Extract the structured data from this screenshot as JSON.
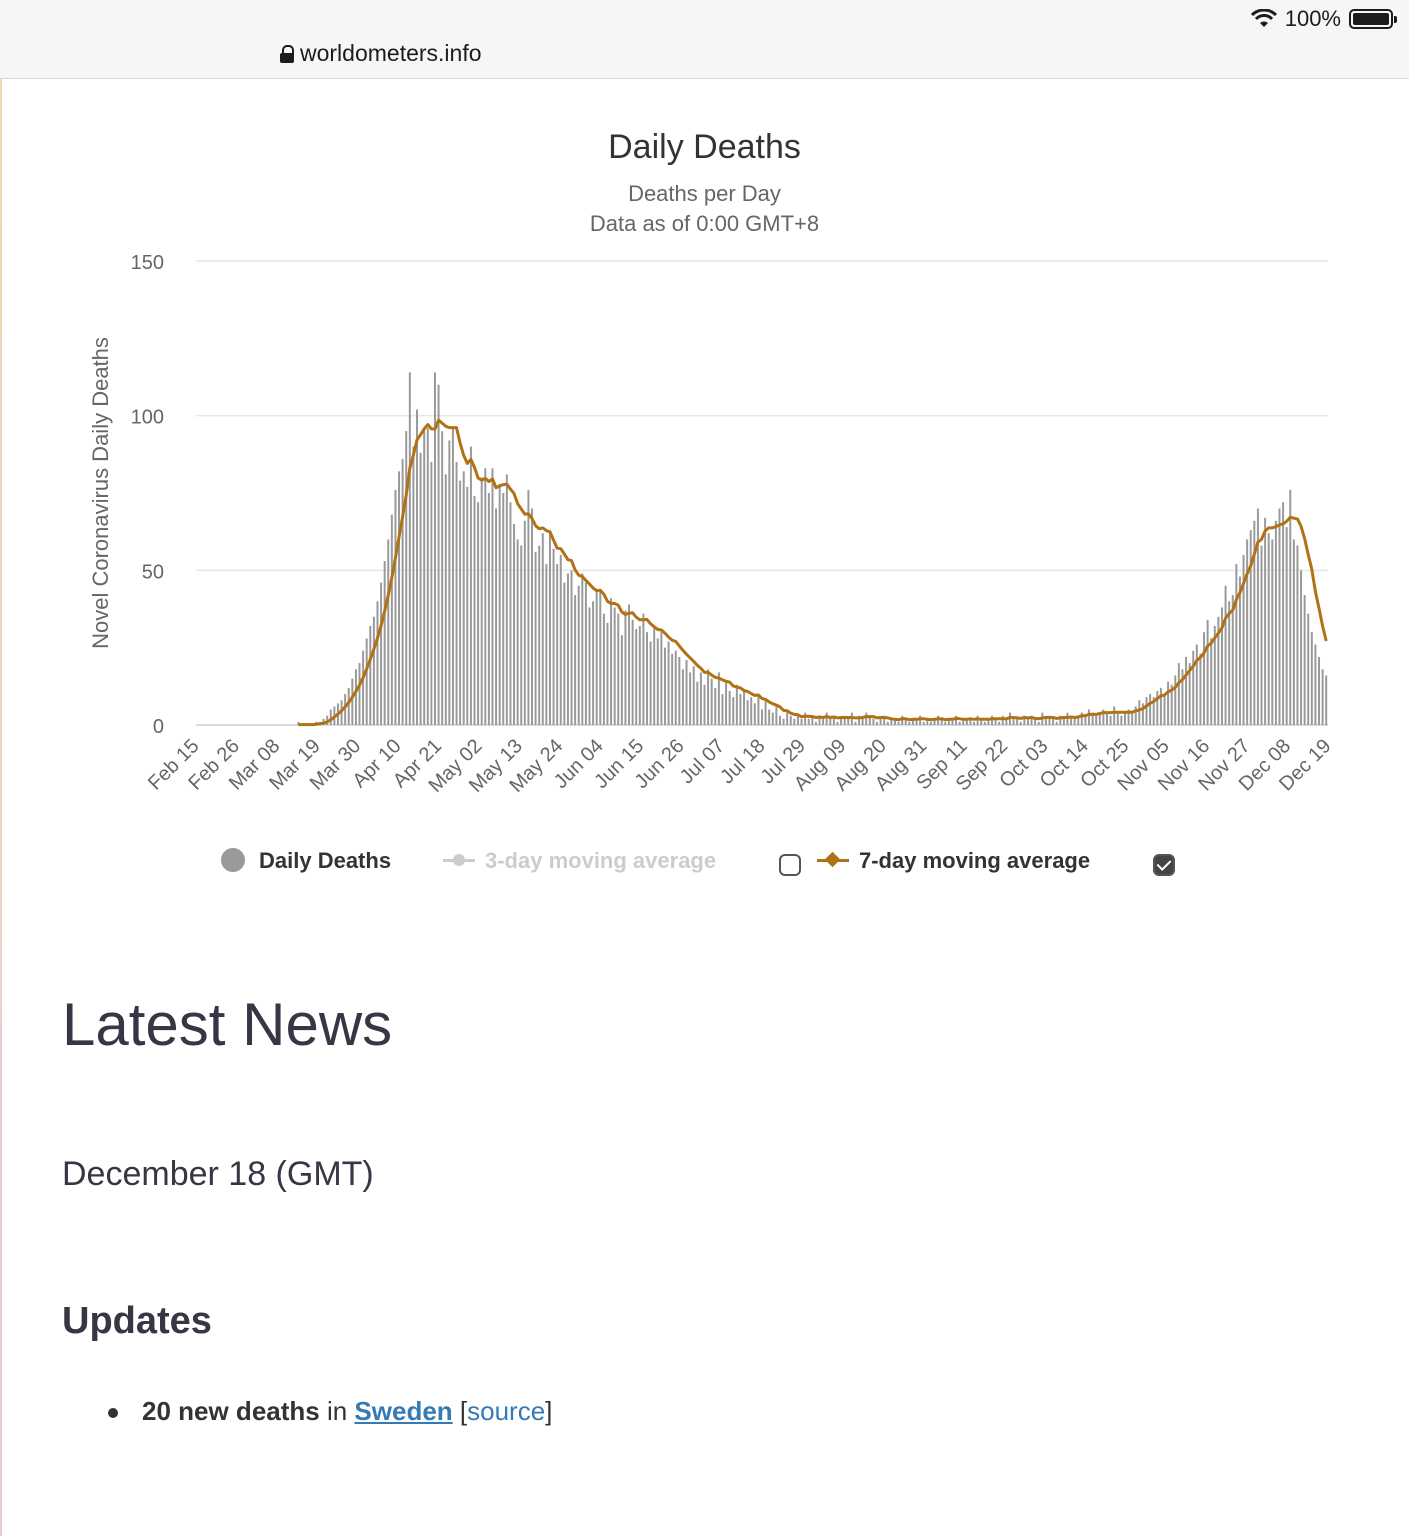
{
  "browser": {
    "url": "worldometers.info",
    "battery": "100%"
  },
  "chart_data": {
    "type": "bar",
    "title": "Daily Deaths",
    "subtitle": "Deaths per Day",
    "subtitle2": "Data as of 0:00 GMT+8",
    "ylabel": "Novel Coronavirus Daily Deaths",
    "xlabel": "",
    "ylim": [
      0,
      150
    ],
    "yticks": [
      0,
      50,
      100,
      150
    ],
    "grid": true,
    "legend_position": "bottom",
    "x_tick_labels": [
      "Feb 15",
      "Feb 26",
      "Mar 08",
      "Mar 19",
      "Mar 30",
      "Apr 10",
      "Apr 21",
      "May 02",
      "May 13",
      "May 24",
      "Jun 04",
      "Jun 15",
      "Jun 26",
      "Jul 07",
      "Jul 18",
      "Jul 29",
      "Aug 09",
      "Aug 20",
      "Aug 31",
      "Sep 11",
      "Sep 22",
      "Oct 03",
      "Oct 14",
      "Oct 25",
      "Nov 05",
      "Nov 16",
      "Nov 27",
      "Dec 08",
      "Dec 19"
    ],
    "x_start": "Feb 15",
    "x_end": "Dec 19",
    "series": [
      {
        "name": "Daily Deaths",
        "color": "#999999",
        "values": [
          0,
          0,
          0,
          0,
          0,
          0,
          0,
          0,
          0,
          0,
          0,
          0,
          0,
          0,
          0,
          0,
          0,
          0,
          0,
          0,
          0,
          0,
          0,
          0,
          0,
          0,
          0,
          0,
          1,
          0,
          0,
          0,
          0,
          1,
          1,
          2,
          3,
          5,
          6,
          7,
          8,
          10,
          12,
          15,
          18,
          20,
          24,
          28,
          32,
          35,
          40,
          46,
          53,
          60,
          68,
          76,
          82,
          86,
          95,
          114,
          90,
          102,
          88,
          95,
          96,
          85,
          114,
          110,
          95,
          81,
          92,
          96,
          85,
          79,
          82,
          77,
          90,
          74,
          72,
          80,
          83,
          75,
          83,
          70,
          78,
          75,
          81,
          72,
          65,
          60,
          58,
          66,
          76,
          70,
          56,
          58,
          62,
          52,
          63,
          57,
          52,
          55,
          46,
          49,
          50,
          42,
          45,
          49,
          46,
          38,
          40,
          44,
          43,
          36,
          33,
          41,
          38,
          36,
          29,
          37,
          39,
          34,
          31,
          32,
          36,
          30,
          27,
          32,
          28,
          30,
          25,
          27,
          23,
          24,
          22,
          18,
          21,
          17,
          19,
          14,
          17,
          13,
          18,
          15,
          12,
          17,
          10,
          14,
          11,
          9,
          13,
          10,
          11,
          8,
          9,
          7,
          10,
          5,
          8,
          5,
          4,
          6,
          3,
          2,
          4,
          3,
          2,
          3,
          2,
          4,
          2,
          3,
          1,
          3,
          2,
          4,
          2,
          3,
          1,
          2,
          3,
          2,
          4,
          1,
          3,
          2,
          4,
          3,
          2,
          1,
          2,
          3,
          1,
          2,
          2,
          1,
          3,
          2,
          1,
          2,
          2,
          3,
          1,
          2,
          1,
          2,
          3,
          2,
          1,
          2,
          2,
          3,
          1,
          2,
          2,
          2,
          1,
          3,
          2,
          1,
          2,
          3,
          2,
          1,
          3,
          2,
          4,
          2,
          2,
          1,
          3,
          2,
          3,
          2,
          1,
          4,
          2,
          3,
          2,
          1,
          3,
          2,
          4,
          3,
          2,
          3,
          4,
          3,
          5,
          4,
          3,
          4,
          5,
          4,
          3,
          6,
          4,
          3,
          4,
          5,
          4,
          6,
          8,
          7,
          9,
          10,
          9,
          11,
          12,
          10,
          14,
          13,
          16,
          20,
          18,
          22,
          20,
          24,
          26,
          23,
          30,
          34,
          28,
          32,
          35,
          38,
          45,
          40,
          42,
          52,
          48,
          55,
          60,
          63,
          66,
          70,
          58,
          67,
          62,
          60,
          66,
          70,
          72,
          64,
          76,
          60,
          58,
          50,
          42,
          36,
          30,
          26,
          22,
          18,
          16
        ]
      },
      {
        "name": "3-day moving average",
        "color": "#cccccc",
        "enabled": false
      },
      {
        "name": "7-day moving average",
        "color": "#b07212",
        "enabled": true
      }
    ]
  },
  "news": {
    "heading": "Latest News",
    "date": "December 18 (GMT)",
    "updates_heading": "Updates",
    "items": [
      {
        "count": "20 new deaths",
        "mid": " in ",
        "country": "Sweden",
        "source_open": " [",
        "source": "source",
        "source_close": "]"
      }
    ]
  }
}
